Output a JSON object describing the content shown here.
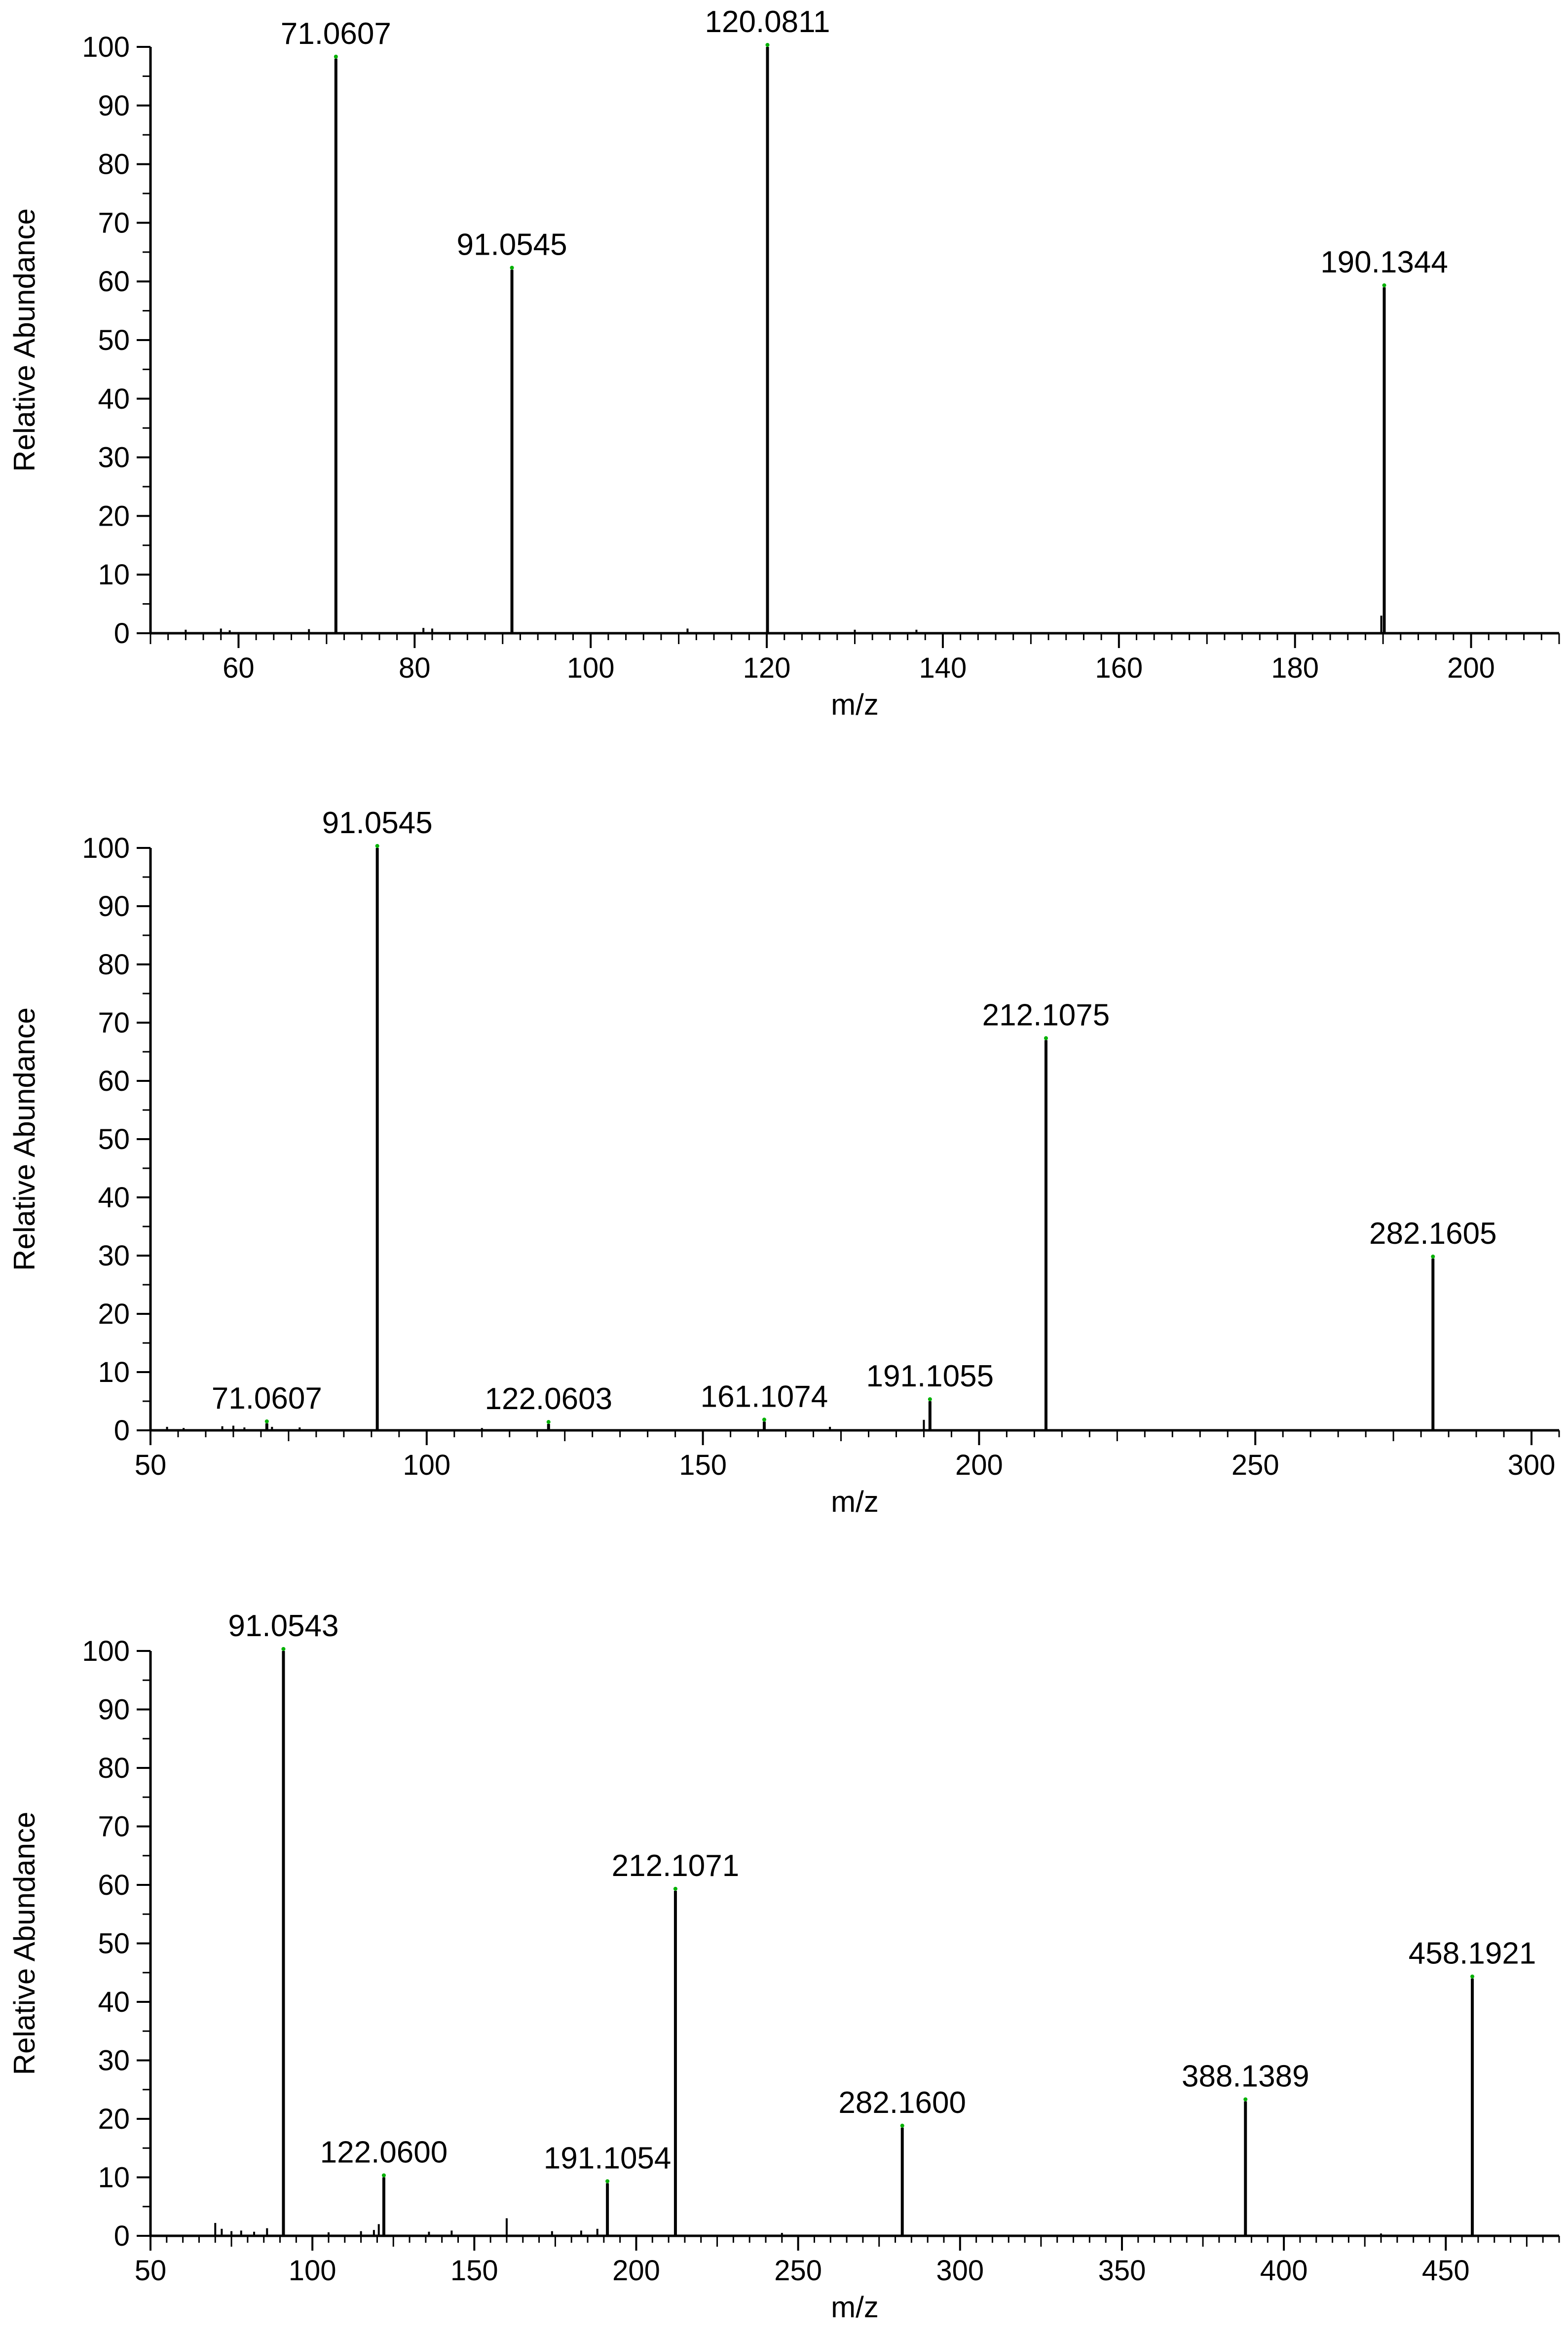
{
  "colors": {
    "ink": "#000000",
    "apex_marker": "#00b000",
    "background": "#ffffff"
  },
  "chart_data": [
    {
      "type": "line",
      "subtype": "mass-spectrum-stick",
      "xlabel": "m/z",
      "ylabel": "Relative Abundance",
      "xlim": [
        50,
        210
      ],
      "ylim": [
        0,
        100
      ],
      "x_ticks": [
        60,
        80,
        100,
        120,
        140,
        160,
        180,
        200
      ],
      "y_ticks": [
        0,
        10,
        20,
        30,
        40,
        50,
        60,
        70,
        80,
        90,
        100
      ],
      "grid": false,
      "labeled_peaks": [
        {
          "mz": 71.0607,
          "abundance": 98,
          "label": "71.0607"
        },
        {
          "mz": 91.0545,
          "abundance": 62,
          "label": "91.0545"
        },
        {
          "mz": 120.0811,
          "abundance": 100,
          "label": "120.0811"
        },
        {
          "mz": 190.1344,
          "abundance": 59,
          "label": "190.1344"
        }
      ],
      "minor_peaks": [
        {
          "mz": 54,
          "abundance": 0.6
        },
        {
          "mz": 58,
          "abundance": 0.8
        },
        {
          "mz": 59,
          "abundance": 0.5
        },
        {
          "mz": 68,
          "abundance": 0.7
        },
        {
          "mz": 81,
          "abundance": 0.9
        },
        {
          "mz": 82,
          "abundance": 0.8
        },
        {
          "mz": 111,
          "abundance": 0.8
        },
        {
          "mz": 130,
          "abundance": 0.6
        },
        {
          "mz": 137,
          "abundance": 0.6
        },
        {
          "mz": 189.8,
          "abundance": 3
        }
      ]
    },
    {
      "type": "line",
      "subtype": "mass-spectrum-stick",
      "xlabel": "m/z",
      "ylabel": "Relative Abundance",
      "xlim": [
        50,
        305
      ],
      "ylim": [
        0,
        100
      ],
      "x_ticks": [
        50,
        100,
        150,
        200,
        250,
        300
      ],
      "y_ticks": [
        0,
        10,
        20,
        30,
        40,
        50,
        60,
        70,
        80,
        90,
        100
      ],
      "grid": false,
      "labeled_peaks": [
        {
          "mz": 71.0607,
          "abundance": 1.2,
          "label": "71.0607"
        },
        {
          "mz": 91.0545,
          "abundance": 100,
          "label": "91.0545"
        },
        {
          "mz": 122.0603,
          "abundance": 1.1,
          "label": "122.0603"
        },
        {
          "mz": 161.1074,
          "abundance": 1.5,
          "label": "161.1074"
        },
        {
          "mz": 191.1055,
          "abundance": 5,
          "label": "191.1055"
        },
        {
          "mz": 212.1075,
          "abundance": 67,
          "label": "212.1075"
        },
        {
          "mz": 282.1605,
          "abundance": 29.5,
          "label": "282.1605"
        }
      ],
      "minor_peaks": [
        {
          "mz": 53,
          "abundance": 0.6
        },
        {
          "mz": 56,
          "abundance": 0.4
        },
        {
          "mz": 63,
          "abundance": 0.7
        },
        {
          "mz": 65,
          "abundance": 0.8
        },
        {
          "mz": 67,
          "abundance": 0.5
        },
        {
          "mz": 72,
          "abundance": 0.6
        },
        {
          "mz": 77,
          "abundance": 0.5
        },
        {
          "mz": 110,
          "abundance": 0.4
        },
        {
          "mz": 173,
          "abundance": 0.6
        },
        {
          "mz": 190,
          "abundance": 1.8
        }
      ]
    },
    {
      "type": "line",
      "subtype": "mass-spectrum-stick",
      "xlabel": "m/z",
      "ylabel": "Relative Abundance",
      "xlim": [
        50,
        485
      ],
      "ylim": [
        0,
        100
      ],
      "x_ticks": [
        50,
        100,
        150,
        200,
        250,
        300,
        350,
        400,
        450
      ],
      "y_ticks": [
        0,
        10,
        20,
        30,
        40,
        50,
        60,
        70,
        80,
        90,
        100
      ],
      "grid": false,
      "labeled_peaks": [
        {
          "mz": 91.0543,
          "abundance": 100,
          "label": "91.0543"
        },
        {
          "mz": 122.06,
          "abundance": 10,
          "label": "122.0600"
        },
        {
          "mz": 191.1054,
          "abundance": 9,
          "label": "191.1054"
        },
        {
          "mz": 212.1071,
          "abundance": 59,
          "label": "212.1071"
        },
        {
          "mz": 282.16,
          "abundance": 18.5,
          "label": "282.1600"
        },
        {
          "mz": 388.1389,
          "abundance": 23,
          "label": "388.1389"
        },
        {
          "mz": 458.1921,
          "abundance": 44,
          "label": "458.1921"
        }
      ],
      "minor_peaks": [
        {
          "mz": 70,
          "abundance": 2.2
        },
        {
          "mz": 72,
          "abundance": 1.2
        },
        {
          "mz": 75,
          "abundance": 0.8
        },
        {
          "mz": 78,
          "abundance": 0.9
        },
        {
          "mz": 82,
          "abundance": 0.7
        },
        {
          "mz": 86,
          "abundance": 1.3
        },
        {
          "mz": 105,
          "abundance": 0.6
        },
        {
          "mz": 115,
          "abundance": 0.8
        },
        {
          "mz": 119,
          "abundance": 1.0
        },
        {
          "mz": 120.5,
          "abundance": 2.0
        },
        {
          "mz": 136,
          "abundance": 0.7
        },
        {
          "mz": 143,
          "abundance": 0.9
        },
        {
          "mz": 160,
          "abundance": 3.0
        },
        {
          "mz": 174,
          "abundance": 0.8
        },
        {
          "mz": 183,
          "abundance": 0.9
        },
        {
          "mz": 188,
          "abundance": 1.2
        },
        {
          "mz": 245,
          "abundance": 0.5
        },
        {
          "mz": 430,
          "abundance": 0.4
        }
      ]
    }
  ]
}
